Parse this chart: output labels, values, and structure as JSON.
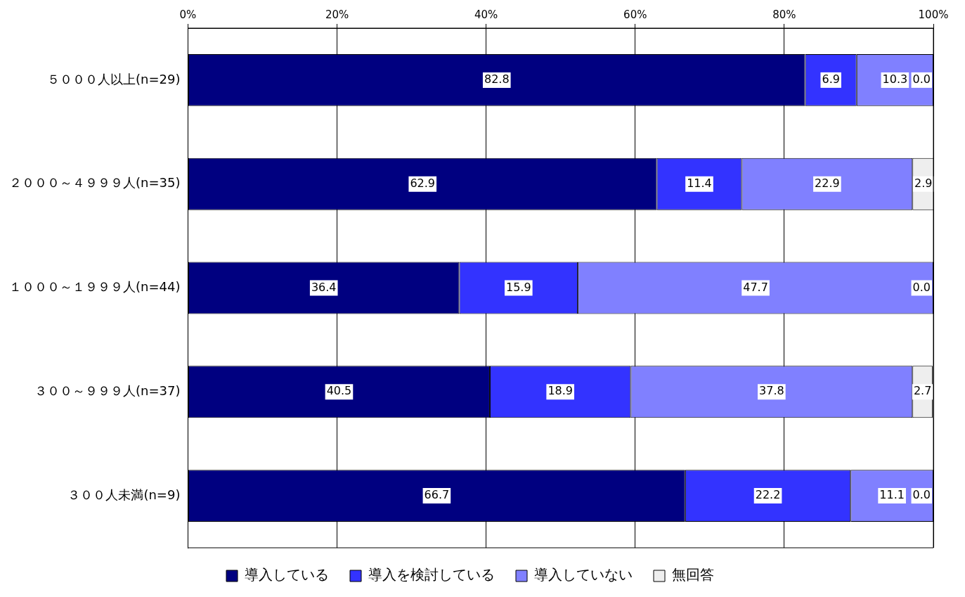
{
  "chart_data": {
    "type": "bar",
    "orientation": "horizontal",
    "stacked": true,
    "categories": [
      "５０００人以上(n=29)",
      "２０００～４９９９人(n=35)",
      "１０００～１９９９人(n=44)",
      "３００～９９９人(n=37)",
      "３００人未満(n=9)"
    ],
    "series": [
      {
        "name": "導入している",
        "color": "#000080",
        "values": [
          82.8,
          62.9,
          36.4,
          40.5,
          66.7
        ],
        "value_labels": [
          "82.8",
          "62.9",
          "36.4",
          "40.5",
          "66.7"
        ]
      },
      {
        "name": "導入を検討している",
        "color": "#3333ff",
        "values": [
          6.9,
          11.4,
          15.9,
          18.9,
          22.2
        ],
        "value_labels": [
          "6.9",
          "11.4",
          "15.9",
          "18.9",
          "22.2"
        ]
      },
      {
        "name": "導入していない",
        "color": "#8080ff",
        "values": [
          10.3,
          22.9,
          47.7,
          37.8,
          11.1
        ],
        "value_labels": [
          "10.3",
          "22.9",
          "47.7",
          "37.8",
          "11.1"
        ]
      },
      {
        "name": "無回答",
        "color": "#eeeeee",
        "values": [
          0.0,
          2.9,
          0.0,
          2.7,
          0.0
        ],
        "value_labels": [
          "0.0",
          "2.9",
          "0.0",
          "2.7",
          "0.0"
        ]
      }
    ],
    "xlim": [
      0,
      100
    ],
    "xticks": [
      {
        "value": 0,
        "label": "0%"
      },
      {
        "value": 20,
        "label": "20%"
      },
      {
        "value": 40,
        "label": "40%"
      },
      {
        "value": 60,
        "label": "60%"
      },
      {
        "value": 80,
        "label": "80%"
      },
      {
        "value": 100,
        "label": "100%"
      }
    ],
    "grid": "x",
    "legend": "bottom"
  }
}
